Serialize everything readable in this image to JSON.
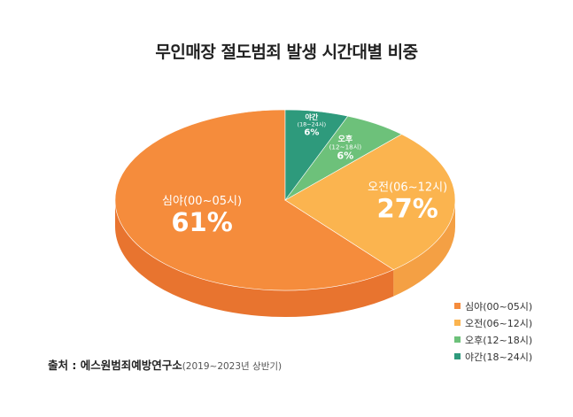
{
  "chart_data": {
    "type": "pie",
    "title": "무인매장 절도범죄 발생 시간대별 비중",
    "slices": [
      {
        "label": "심야(00~05시)",
        "legend": "심야(00~05시)",
        "value": 61,
        "value_label": "61%",
        "color": "#F58C3C",
        "side_color": "#E8742F"
      },
      {
        "label": "오전(06~12시)",
        "legend": "오전(06~12시)",
        "value": 27,
        "value_label": "27%",
        "color": "#FBB44F",
        "side_color": "#F4A044"
      },
      {
        "label": "오후",
        "label_sub": "(12~18시)",
        "legend": "오후(12~18시)",
        "value": 6,
        "value_label": "6%",
        "color": "#6DC17A",
        "side_color": "#57A664"
      },
      {
        "label": "야간",
        "label_sub": "(18~24시)",
        "legend": "야간(18~24시)",
        "value": 6,
        "value_label": "6%",
        "color": "#2E9A7C",
        "side_color": "#23806A"
      }
    ],
    "legend_position": "bottom-right",
    "source_label": "출처 : 에스원범죄예방연구소",
    "source_period": "(2019~2023년 상반기)"
  }
}
